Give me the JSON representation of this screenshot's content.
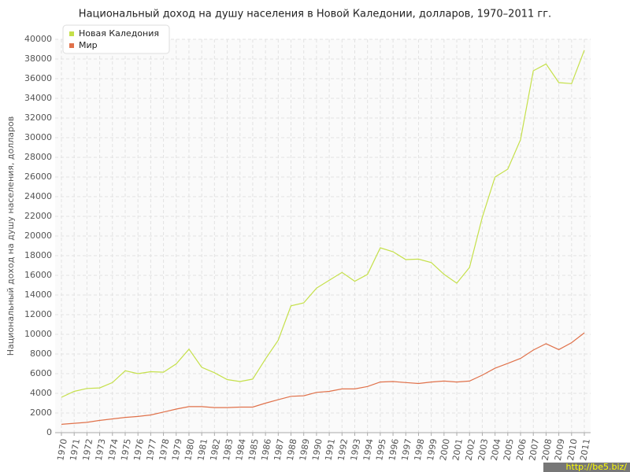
{
  "chart_data": {
    "type": "line",
    "title": "Национальный доход на душу населения в Новой Каледонии, долларов, 1970–2011 гг.",
    "y_label": "Национальный доход на душу населения, долларов",
    "categories": [
      "1970",
      "1971",
      "1972",
      "1973",
      "1974",
      "1975",
      "1976",
      "1977",
      "1978",
      "1979",
      "1980",
      "1981",
      "1982",
      "1983",
      "1984",
      "1985",
      "1986",
      "1987",
      "1988",
      "1989",
      "1990",
      "1991",
      "1992",
      "1993",
      "1994",
      "1995",
      "1996",
      "1997",
      "1998",
      "1999",
      "2000",
      "2001",
      "2002",
      "2003",
      "2004",
      "2005",
      "2006",
      "2007",
      "2008",
      "2009",
      "2010",
      "2011"
    ],
    "series": [
      {
        "name": "Новая Каледония",
        "color": "#c5e04a",
        "values": [
          3600,
          4200,
          4500,
          4550,
          5100,
          6300,
          6000,
          6200,
          6150,
          7000,
          8500,
          6650,
          6100,
          5400,
          5200,
          5450,
          7500,
          9400,
          12900,
          13200,
          14700,
          15500,
          16300,
          15400,
          16100,
          18800,
          18400,
          17600,
          17650,
          17300,
          16100,
          15200,
          16800,
          21900,
          26000,
          26800,
          29800,
          36800,
          37500,
          35600,
          35500,
          38900
        ]
      },
      {
        "name": "Мир",
        "color": "#e0714a",
        "values": [
          850,
          950,
          1050,
          1250,
          1400,
          1550,
          1650,
          1800,
          2100,
          2400,
          2650,
          2650,
          2550,
          2550,
          2600,
          2600,
          3000,
          3350,
          3700,
          3750,
          4100,
          4200,
          4450,
          4450,
          4700,
          5150,
          5200,
          5100,
          5000,
          5150,
          5250,
          5150,
          5250,
          5850,
          6550,
          7050,
          7550,
          8400,
          9050,
          8450,
          9150,
          10150
        ]
      }
    ],
    "ylim": [
      0,
      40000
    ],
    "yticks": [
      0,
      2000,
      4000,
      6000,
      8000,
      10000,
      12000,
      14000,
      16000,
      18000,
      20000,
      22000,
      24000,
      26000,
      28000,
      30000,
      32000,
      34000,
      36000,
      38000,
      40000
    ],
    "grid": true,
    "legend": "top-left",
    "watermark": "http://be5.biz/"
  }
}
